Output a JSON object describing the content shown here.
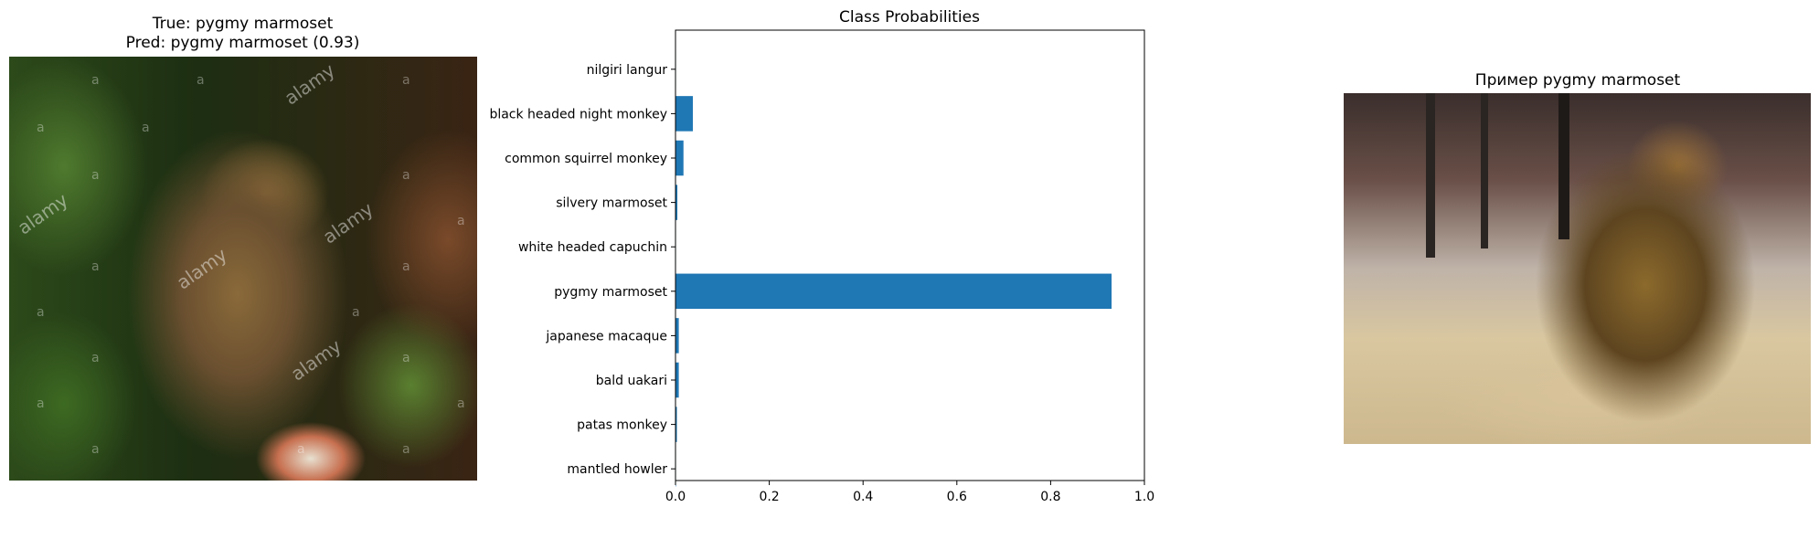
{
  "panel_left": {
    "title_line1": "True: pygmy marmoset",
    "title_line2": "Pred: pygmy marmoset (0.93)",
    "watermark_small": "a",
    "watermark_big": "alamy"
  },
  "panel_right": {
    "title": "Пример pygmy marmoset"
  },
  "chart_data": {
    "type": "bar",
    "orientation": "horizontal",
    "title": "Class Probabilities",
    "xlabel": "",
    "ylabel": "",
    "xlim": [
      0,
      1.0
    ],
    "x_ticks": [
      "0.0",
      "0.2",
      "0.4",
      "0.6",
      "0.8",
      "1.0"
    ],
    "x_tick_values": [
      0.0,
      0.2,
      0.4,
      0.6,
      0.8,
      1.0
    ],
    "categories": [
      "nilgiri langur",
      "black headed night monkey",
      "common squirrel monkey",
      "silvery marmoset",
      "white headed capuchin",
      "pygmy marmoset",
      "japanese macaque",
      "bald uakari",
      "patas monkey",
      "mantled howler"
    ],
    "values": [
      0.001,
      0.037,
      0.017,
      0.004,
      0.001,
      0.93,
      0.007,
      0.007,
      0.003,
      0.001
    ],
    "bar_color": "#1f77b4",
    "grid": false
  }
}
